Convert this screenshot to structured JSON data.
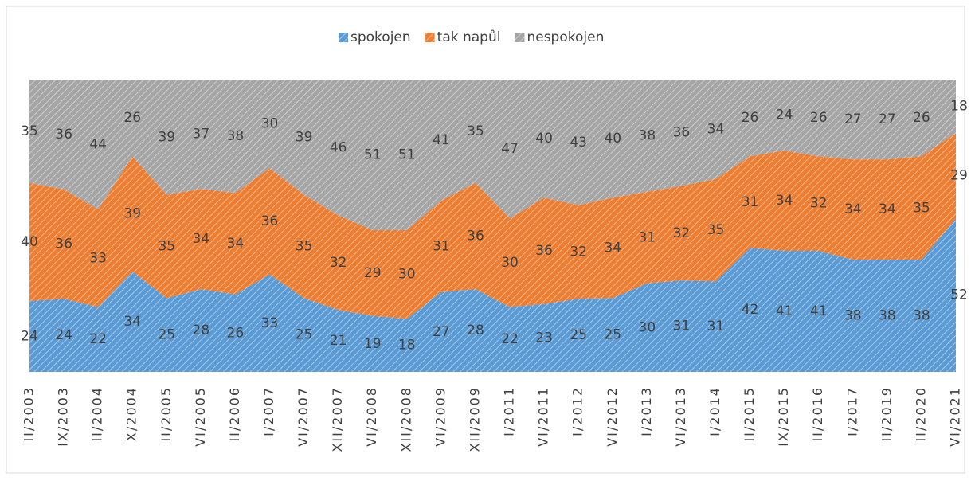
{
  "chart_data": {
    "type": "area",
    "stacking": "percent",
    "categories": [
      "II/2003",
      "IX/2003",
      "II/2004",
      "X/2004",
      "II/2005",
      "VI/2005",
      "II/2006",
      "I/2007",
      "VI/2007",
      "XII/2007",
      "VI/2008",
      "XII/2008",
      "VI/2009",
      "XII/2009",
      "I/2011",
      "VI/2011",
      "I/2012",
      "VI/2012",
      "I/2013",
      "VI/2013",
      "I/2014",
      "II/2015",
      "IX/2015",
      "II/2016",
      "I/2017",
      "II/2019",
      "II/2020",
      "VI/2021"
    ],
    "series": [
      {
        "name": "spokojen",
        "color": "#5b9bd5",
        "values": [
          24,
          24,
          22,
          34,
          25,
          28,
          26,
          33,
          25,
          21,
          19,
          18,
          27,
          28,
          22,
          23,
          25,
          25,
          30,
          31,
          31,
          42,
          41,
          41,
          38,
          38,
          38,
          52
        ]
      },
      {
        "name": "tak napůl",
        "color": "#ed7d31",
        "values": [
          40,
          36,
          33,
          39,
          35,
          34,
          34,
          36,
          35,
          32,
          29,
          30,
          31,
          36,
          30,
          36,
          32,
          34,
          31,
          32,
          35,
          31,
          34,
          32,
          34,
          34,
          35,
          29
        ]
      },
      {
        "name": "nespokojen",
        "color": "#a5a5a5",
        "values": [
          35,
          36,
          44,
          26,
          39,
          37,
          38,
          30,
          39,
          46,
          51,
          51,
          41,
          35,
          47,
          40,
          43,
          40,
          38,
          36,
          34,
          26,
          24,
          26,
          27,
          27,
          26,
          18
        ]
      }
    ],
    "legend": "top"
  }
}
